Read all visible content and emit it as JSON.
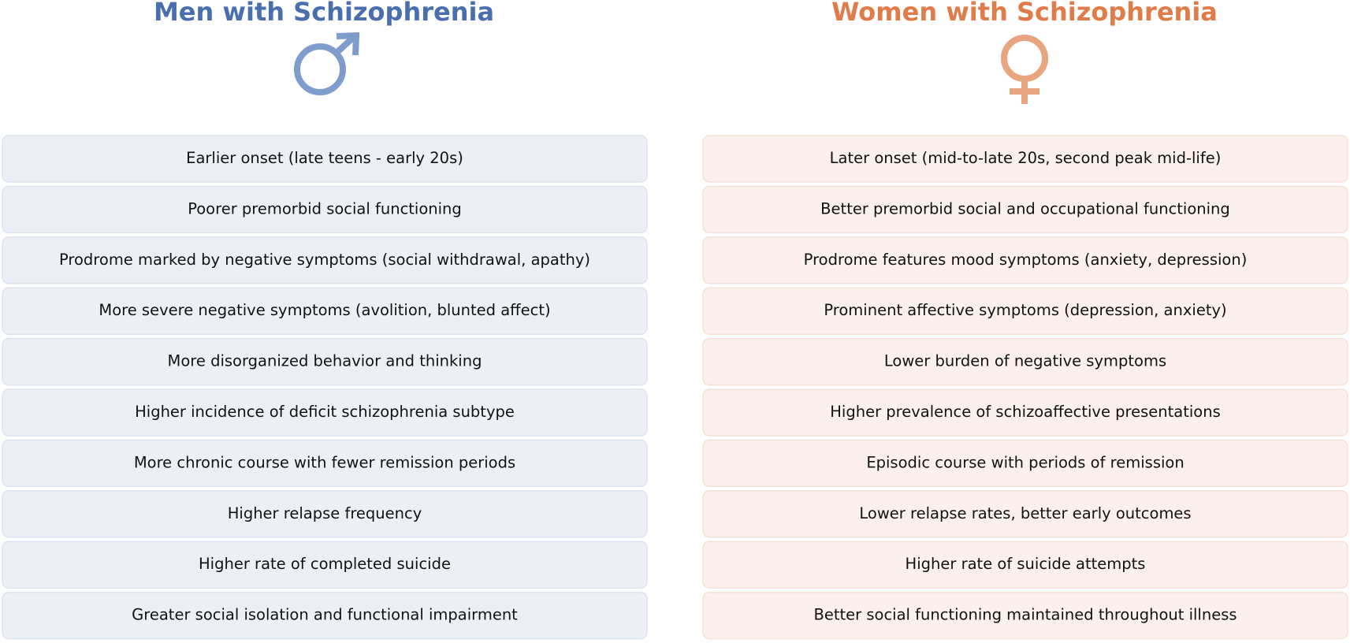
{
  "columns": [
    {
      "title": "Men with Schizophrenia",
      "items": [
        "Earlier onset (late teens - early 20s)",
        "Poorer premorbid social functioning",
        "Prodrome marked by negative symptoms (social withdrawal, apathy)",
        "More severe negative symptoms (avolition, blunted affect)",
        "More disorganized behavior and thinking",
        "Higher incidence of deficit schizophrenia subtype",
        "More chronic course with fewer remission periods",
        "Higher relapse frequency",
        "Higher rate of completed suicide",
        "Greater social isolation and functional impairment"
      ]
    },
    {
      "title": "Women with Schizophrenia",
      "items": [
        "Later onset (mid-to-late 20s, second peak mid-life)",
        "Better premorbid social and occupational functioning",
        "Prodrome features mood symptoms (anxiety, depression)",
        "Prominent affective symptoms (depression, anxiety)",
        "Lower burden of negative symptoms",
        "Higher prevalence of schizoaffective presentations",
        "Episodic course with periods of remission",
        "Lower relapse rates, better early outcomes",
        "Higher rate of suicide attempts",
        "Better social functioning maintained throughout illness"
      ]
    }
  ]
}
